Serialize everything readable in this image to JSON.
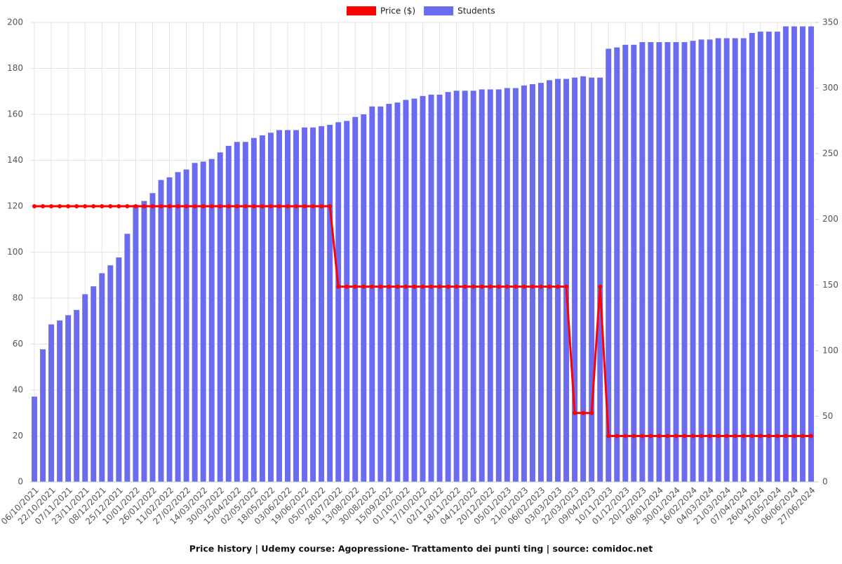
{
  "chart_data": {
    "type": "bar",
    "title": "Price history | Udemy course: Agopressione- Trattamento dei punti ting | source: comidoc.net",
    "categories": [
      "06/10/2021",
      null,
      "22/10/2021",
      null,
      "07/11/2021",
      null,
      "23/11/2021",
      null,
      "08/12/2021",
      null,
      "25/12/2021",
      null,
      "10/01/2022",
      null,
      "26/01/2022",
      null,
      "11/02/2022",
      null,
      "27/02/2022",
      null,
      "14/03/2022",
      null,
      "30/03/2022",
      null,
      "15/04/2022",
      null,
      "02/05/2022",
      null,
      "18/05/2022",
      null,
      "03/06/2022",
      null,
      "19/06/2022",
      null,
      "05/07/2022",
      null,
      "28/07/2022",
      null,
      "13/08/2022",
      null,
      "30/08/2022",
      null,
      "15/09/2022",
      null,
      "01/10/2022",
      null,
      "17/10/2022",
      null,
      "02/11/2022",
      null,
      "18/11/2022",
      null,
      "04/12/2022",
      null,
      "20/12/2022",
      null,
      "05/01/2023",
      null,
      "21/01/2023",
      null,
      "06/02/2023",
      null,
      "03/03/2023",
      null,
      "22/03/2023",
      null,
      "09/04/2023",
      null,
      "10/11/2023",
      null,
      "01/12/2023",
      null,
      "20/12/2023",
      null,
      "08/01/2024",
      null,
      "30/01/2024",
      null,
      "16/02/2024",
      null,
      "04/03/2024",
      null,
      "21/03/2024",
      null,
      "07/04/2024",
      null,
      "26/04/2024",
      null,
      "15/05/2024",
      null,
      "06/06/2024",
      null,
      "27/06/2024"
    ],
    "series": [
      {
        "name": "Price ($)",
        "type": "line",
        "axis": "y",
        "color": "#ff0000",
        "values": [
          120,
          120,
          120,
          120,
          120,
          120,
          120,
          120,
          120,
          120,
          120,
          120,
          120,
          120,
          120,
          120,
          120,
          120,
          120,
          120,
          120,
          120,
          120,
          120,
          120,
          120,
          120,
          120,
          120,
          120,
          120,
          120,
          120,
          120,
          120,
          120,
          85,
          85,
          85,
          85,
          85,
          85,
          85,
          85,
          85,
          85,
          85,
          85,
          85,
          85,
          85,
          85,
          85,
          85,
          85,
          85,
          85,
          85,
          85,
          85,
          85,
          85,
          85,
          85,
          30,
          30,
          30,
          85,
          20,
          20,
          20,
          20,
          20,
          20,
          20,
          20,
          20,
          20,
          20,
          20,
          20,
          20,
          20,
          20,
          20,
          20,
          20,
          20,
          20,
          20,
          20,
          20,
          20
        ]
      },
      {
        "name": "Students",
        "type": "bar",
        "axis": "y2",
        "color": "#6b6bef",
        "values": [
          65,
          101,
          120,
          123,
          127,
          131,
          143,
          149,
          159,
          165,
          171,
          189,
          211,
          214,
          220,
          230,
          232,
          236,
          238,
          243,
          244,
          246,
          251,
          256,
          259,
          259,
          262,
          264,
          266,
          268,
          268,
          268,
          270,
          270,
          271,
          272,
          274,
          275,
          278,
          280,
          286,
          286,
          288,
          289,
          291,
          292,
          294,
          295,
          295,
          297,
          298,
          298,
          298,
          299,
          299,
          299,
          300,
          300,
          302,
          303,
          304,
          306,
          307,
          307,
          308,
          309,
          308,
          308,
          330,
          331,
          333,
          333,
          335,
          335,
          335,
          335,
          335,
          335,
          336,
          337,
          337,
          338,
          338,
          338,
          338,
          342,
          343,
          343,
          343,
          347,
          347,
          347,
          347
        ]
      }
    ],
    "ylim": [
      0,
      200
    ],
    "yticks": [
      0,
      20,
      40,
      60,
      80,
      100,
      120,
      140,
      160,
      180,
      200
    ],
    "y2lim": [
      0,
      350
    ],
    "y2ticks": [
      0,
      50,
      100,
      150,
      200,
      250,
      300,
      350
    ],
    "grid": true,
    "legend": "top"
  }
}
